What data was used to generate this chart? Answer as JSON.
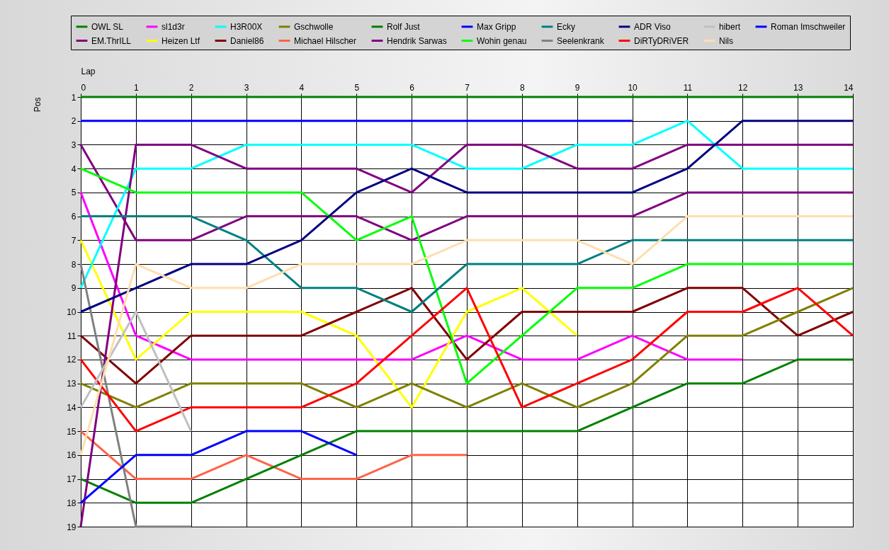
{
  "chart_data": {
    "type": "line",
    "xlabel": "Lap",
    "ylabel": "Pos",
    "x": [
      0,
      1,
      2,
      3,
      4,
      5,
      6,
      7,
      8,
      9,
      10,
      11,
      12,
      13,
      14
    ],
    "xlim": [
      0,
      14
    ],
    "xticks": [
      0,
      1,
      2,
      3,
      4,
      5,
      6,
      7,
      8,
      9,
      10,
      11,
      12,
      13,
      14
    ],
    "ylim": [
      19,
      1
    ],
    "yticks": [
      1,
      2,
      3,
      4,
      5,
      6,
      7,
      8,
      9,
      10,
      11,
      12,
      13,
      14,
      15,
      16,
      17,
      18,
      19
    ],
    "grid": true,
    "legend": "top",
    "marker": "none",
    "line_style": "solid",
    "series": [
      {
        "name": "OWL SL",
        "color": "#008000",
        "values": [
          1,
          1,
          1,
          1,
          1,
          1,
          1,
          1,
          1,
          1,
          1,
          1,
          1,
          1,
          1
        ]
      },
      {
        "name": "EM.ThrILL",
        "color": "#800080",
        "values": [
          3,
          7,
          7,
          6,
          6,
          6,
          7,
          6,
          6,
          6,
          6,
          5,
          5,
          5,
          5
        ]
      },
      {
        "name": "sl1d3r",
        "color": "#ff00ff",
        "values": [
          5,
          11,
          12,
          12,
          12,
          12,
          12,
          11,
          12,
          12,
          11,
          12,
          12,
          null,
          null
        ]
      },
      {
        "name": "Heizen Ltf",
        "color": "#ffff00",
        "values": [
          7,
          12,
          10,
          10,
          10,
          11,
          14,
          10,
          9,
          11,
          null,
          null,
          null,
          null,
          null
        ]
      },
      {
        "name": "H3R00X",
        "color": "#00ffff",
        "values": [
          9,
          4,
          4,
          3,
          3,
          3,
          3,
          4,
          4,
          3,
          3,
          2,
          4,
          4,
          4
        ]
      },
      {
        "name": "Daniel86",
        "color": "#800000",
        "values": [
          11,
          13,
          11,
          11,
          11,
          10,
          9,
          12,
          10,
          10,
          10,
          9,
          9,
          11,
          10
        ]
      },
      {
        "name": "Gschwolle",
        "color": "#808000",
        "values": [
          13,
          14,
          13,
          13,
          13,
          14,
          13,
          14,
          13,
          14,
          13,
          11,
          11,
          10,
          9
        ]
      },
      {
        "name": "Michael Hilscher",
        "color": "#ff6347",
        "values": [
          15,
          17,
          17,
          16,
          17,
          17,
          16,
          16,
          null,
          null,
          null,
          null,
          null,
          null,
          null
        ]
      },
      {
        "name": "Rolf Just",
        "color": "#008000",
        "values": [
          17,
          18,
          18,
          17,
          16,
          15,
          15,
          15,
          15,
          15,
          14,
          13,
          13,
          12,
          12
        ]
      },
      {
        "name": "Hendrik Sarwas",
        "color": "#800080",
        "values": [
          19,
          3,
          3,
          4,
          4,
          4,
          5,
          3,
          3,
          4,
          4,
          3,
          3,
          3,
          3
        ]
      },
      {
        "name": "Max Gripp",
        "color": "#0000ff",
        "values": [
          2,
          2,
          2,
          2,
          2,
          2,
          2,
          2,
          2,
          2,
          2,
          null,
          null,
          null,
          null
        ]
      },
      {
        "name": "Wohin genau",
        "color": "#00ff00",
        "values": [
          4,
          5,
          5,
          5,
          5,
          7,
          6,
          13,
          11,
          9,
          9,
          8,
          8,
          8,
          8
        ]
      },
      {
        "name": "Ecky",
        "color": "#008080",
        "values": [
          6,
          6,
          6,
          7,
          9,
          9,
          10,
          8,
          8,
          8,
          7,
          7,
          7,
          7,
          7
        ]
      },
      {
        "name": "Seelenkrank",
        "color": "#808080",
        "values": [
          8,
          19,
          19,
          null,
          null,
          null,
          null,
          null,
          null,
          null,
          null,
          null,
          null,
          null,
          null
        ]
      },
      {
        "name": "ADR Viso",
        "color": "#000080",
        "values": [
          10,
          9,
          8,
          8,
          7,
          5,
          4,
          5,
          5,
          5,
          5,
          4,
          2,
          2,
          2
        ]
      },
      {
        "name": "DiRTyDRiVER",
        "color": "#ff0000",
        "values": [
          12,
          15,
          14,
          14,
          14,
          13,
          11,
          9,
          14,
          13,
          12,
          10,
          10,
          9,
          11
        ]
      },
      {
        "name": "hibert",
        "color": "#c0c0c0",
        "values": [
          14,
          10,
          15,
          null,
          null,
          null,
          null,
          null,
          null,
          null,
          null,
          null,
          null,
          null,
          null
        ]
      },
      {
        "name": "Nils",
        "color": "#ffdead",
        "values": [
          16,
          8,
          9,
          9,
          8,
          8,
          8,
          7,
          7,
          7,
          8,
          6,
          6,
          6,
          6
        ]
      },
      {
        "name": "Roman Imschweiler",
        "color": "#0000ff",
        "values": [
          18,
          16,
          16,
          15,
          15,
          16,
          null,
          null,
          null,
          null,
          null,
          null,
          null,
          null,
          null
        ]
      }
    ]
  }
}
